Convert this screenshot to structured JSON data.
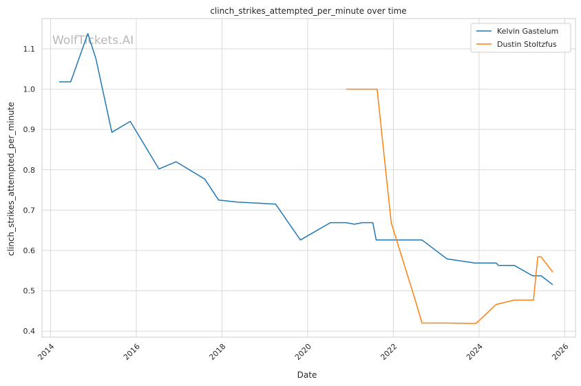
{
  "chart_data": {
    "type": "line",
    "title": "clinch_strikes_attempted_per_minute over time",
    "xlabel": "Date",
    "ylabel": "clinch_strikes_attempted_per_minute",
    "watermark": "WolfTickets.AI",
    "xlim": [
      2013.8,
      2026.25
    ],
    "ylim": [
      0.385,
      1.175
    ],
    "x_ticks": [
      2014,
      2016,
      2018,
      2020,
      2022,
      2024,
      2026
    ],
    "y_ticks": [
      0.4,
      0.5,
      0.6,
      0.7,
      0.8,
      0.9,
      1.0,
      1.1
    ],
    "y_tick_labels": [
      "0.4",
      "0.5",
      "0.6",
      "0.7",
      "0.8",
      "0.9",
      "1.0",
      "1.1"
    ],
    "grid": true,
    "legend_position": "top-right",
    "series": [
      {
        "name": "Kelvin Gastelum",
        "color": "#1f77b4",
        "points": [
          [
            2014.2,
            1.018
          ],
          [
            2014.47,
            1.018
          ],
          [
            2014.87,
            1.138
          ],
          [
            2015.06,
            1.075
          ],
          [
            2015.43,
            0.893
          ],
          [
            2015.86,
            0.92
          ],
          [
            2016.53,
            0.802
          ],
          [
            2016.93,
            0.82
          ],
          [
            2017.6,
            0.777
          ],
          [
            2017.92,
            0.725
          ],
          [
            2018.37,
            0.72
          ],
          [
            2019.25,
            0.715
          ],
          [
            2019.83,
            0.626
          ],
          [
            2020.53,
            0.669
          ],
          [
            2020.9,
            0.669
          ],
          [
            2021.09,
            0.665
          ],
          [
            2021.27,
            0.669
          ],
          [
            2021.52,
            0.669
          ],
          [
            2021.6,
            0.626
          ],
          [
            2022.67,
            0.626
          ],
          [
            2023.25,
            0.579
          ],
          [
            2023.9,
            0.569
          ],
          [
            2024.4,
            0.569
          ],
          [
            2024.45,
            0.563
          ],
          [
            2024.82,
            0.563
          ],
          [
            2025.25,
            0.537
          ],
          [
            2025.45,
            0.537
          ],
          [
            2025.72,
            0.515
          ]
        ]
      },
      {
        "name": "Dustin Stoltzfus",
        "color": "#ff7f0e",
        "points": [
          [
            2020.9,
            1.0
          ],
          [
            2021.62,
            1.0
          ],
          [
            2021.95,
            0.669
          ],
          [
            2022.5,
            0.48
          ],
          [
            2022.67,
            0.42
          ],
          [
            2023.25,
            0.42
          ],
          [
            2023.93,
            0.419
          ],
          [
            2024.4,
            0.466
          ],
          [
            2024.82,
            0.477
          ],
          [
            2025.27,
            0.477
          ],
          [
            2025.37,
            0.584
          ],
          [
            2025.45,
            0.584
          ],
          [
            2025.72,
            0.546
          ]
        ]
      }
    ]
  }
}
